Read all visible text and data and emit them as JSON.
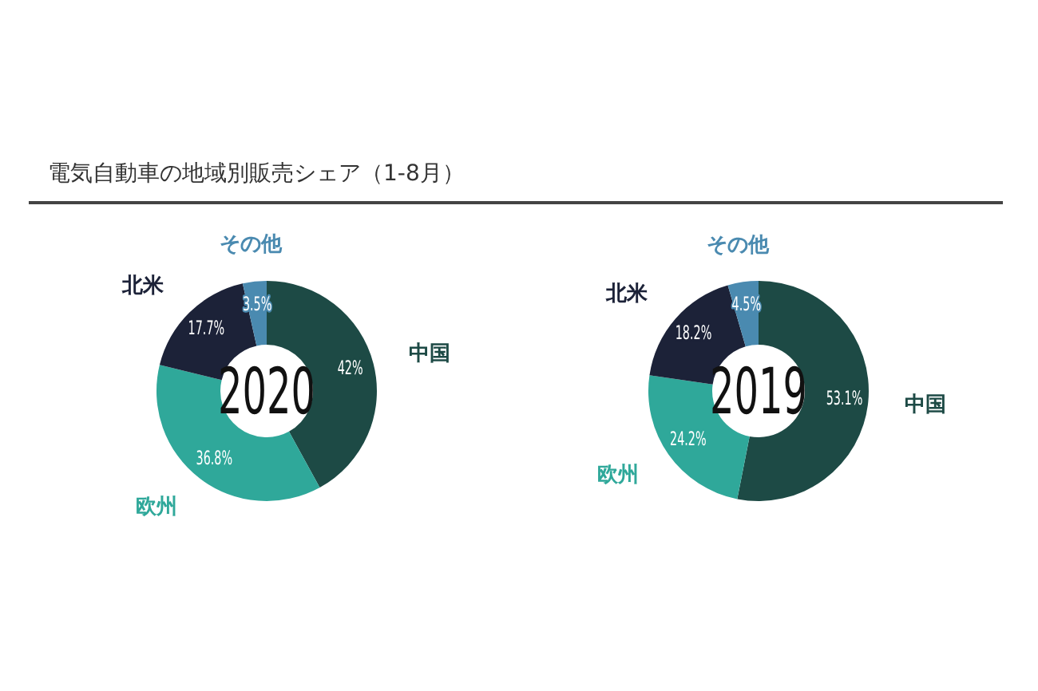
{
  "chart_data": [
    {
      "type": "other",
      "title": "電気自動車の地域別販売シェア（1-8月）"
    },
    {
      "type": "donut",
      "title": "2020",
      "categories": [
        "中国",
        "欧州",
        "北米",
        "その他"
      ],
      "values": [
        42,
        36.8,
        17.7,
        3.5
      ],
      "colors": [
        "#1d4a45",
        "#2fa89a",
        "#1c2238",
        "#4a8ab0"
      ],
      "value_labels": [
        "42%",
        "36.8%",
        "17.7%",
        "3.5%"
      ]
    },
    {
      "type": "donut",
      "title": "2019",
      "categories": [
        "中国",
        "欧州",
        "北米",
        "その他"
      ],
      "values": [
        53.1,
        24.2,
        18.2,
        4.5
      ],
      "colors": [
        "#1d4a45",
        "#2fa89a",
        "#1c2238",
        "#4a8ab0"
      ],
      "value_labels": [
        "53.1%",
        "24.2%",
        "18.2%",
        "4.5%"
      ]
    }
  ]
}
